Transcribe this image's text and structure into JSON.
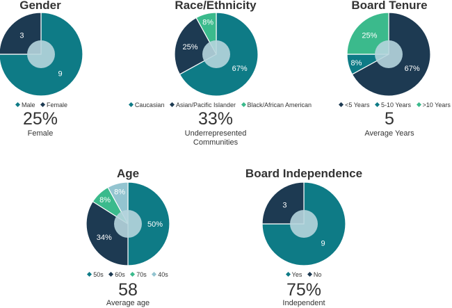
{
  "colors": {
    "teal": "#0e7b86",
    "navy": "#1d3a52",
    "green": "#3bba8c",
    "lightblue": "#93c4d0",
    "hole": "#b6d5dd",
    "text": "#333333"
  },
  "chart_data": [
    {
      "id": "gender",
      "type": "pie",
      "title": "Gender",
      "slices": [
        {
          "label": "Male",
          "value": 9,
          "display": "9",
          "color": "#0e7b86"
        },
        {
          "label": "Female",
          "value": 3,
          "display": "3",
          "color": "#1d3a52"
        }
      ],
      "stat": "25%",
      "caption": "Female"
    },
    {
      "id": "race",
      "type": "pie",
      "title": "Race/Ethnicity",
      "slices": [
        {
          "label": "Caucasian",
          "value": 67,
          "display": "67%",
          "color": "#0e7b86"
        },
        {
          "label": "Asian/Pacific Islander",
          "value": 25,
          "display": "25%",
          "color": "#1d3a52"
        },
        {
          "label": "Black/African American",
          "value": 8,
          "display": "8%",
          "color": "#3bba8c"
        }
      ],
      "stat": "33%",
      "caption": "Underrepresented Communities"
    },
    {
      "id": "tenure",
      "type": "pie",
      "title": "Board Tenure",
      "slices": [
        {
          "label": "<5 Years",
          "value": 67,
          "display": "67%",
          "color": "#1d3a52"
        },
        {
          "label": "5-10 Years",
          "value": 8,
          "display": "8%",
          "color": "#0e7b86"
        },
        {
          "label": ">10 Years",
          "value": 25,
          "display": "25%",
          "color": "#3bba8c"
        }
      ],
      "stat": "5",
      "caption": "Average Years"
    },
    {
      "id": "age",
      "type": "pie",
      "title": "Age",
      "slices": [
        {
          "label": "50s",
          "value": 50,
          "display": "50%",
          "color": "#0e7b86"
        },
        {
          "label": "60s",
          "value": 34,
          "display": "34%",
          "color": "#1d3a52"
        },
        {
          "label": "70s",
          "value": 8,
          "display": "8%",
          "color": "#3bba8c"
        },
        {
          "label": "40s",
          "value": 8,
          "display": "8%",
          "color": "#93c4d0"
        }
      ],
      "stat": "58",
      "caption": "Average age"
    },
    {
      "id": "independence",
      "type": "pie",
      "title": "Board Independence",
      "slices": [
        {
          "label": "Yes",
          "value": 9,
          "display": "9",
          "color": "#0e7b86"
        },
        {
          "label": "No",
          "value": 3,
          "display": "3",
          "color": "#1d3a52"
        }
      ],
      "stat": "75%",
      "caption": "Independent"
    }
  ]
}
